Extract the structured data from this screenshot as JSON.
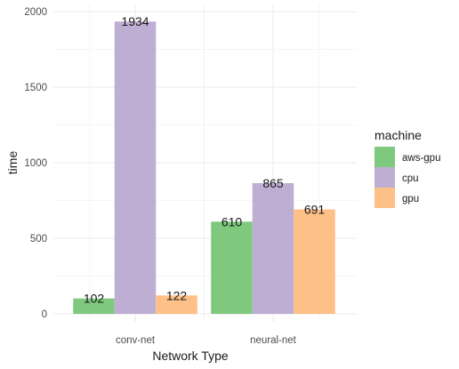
{
  "chart_data": {
    "type": "bar",
    "categories": [
      "conv-net",
      "neural-net"
    ],
    "series": [
      {
        "name": "aws-gpu",
        "color": "#7fc97f",
        "values": [
          102,
          610
        ]
      },
      {
        "name": "cpu",
        "color": "#beaed4",
        "values": [
          1934,
          865
        ]
      },
      {
        "name": "gpu",
        "color": "#fdc086",
        "values": [
          122,
          691
        ]
      }
    ],
    "xlabel": "Network Type",
    "ylabel": "time",
    "ylim": [
      0,
      2000
    ],
    "yticks": [
      0,
      500,
      1000,
      1500,
      2000
    ],
    "legend_title": "machine",
    "legend_position": "right",
    "grid": true,
    "grid_color": "#ebebeb"
  }
}
